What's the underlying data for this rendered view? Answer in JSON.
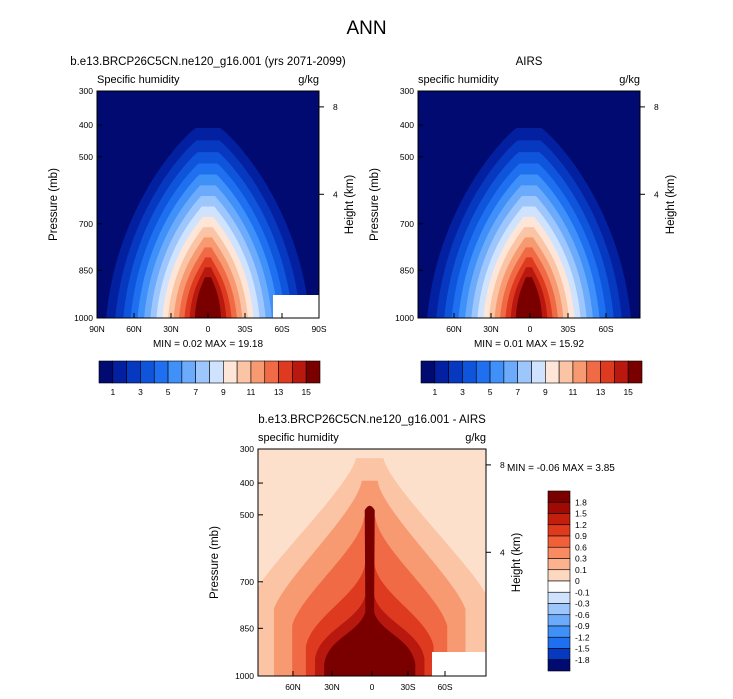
{
  "page_title": "ANN",
  "chart_data": [
    {
      "type": "contour",
      "title": "b.e13.BRCP26C5CN.ne120_g16.001 (yrs 2071-2099)",
      "left_label": "Specific humidity",
      "right_label": "g/kg",
      "xlabel": "",
      "ylabel": "Pressure (mb)",
      "ylabel_right": "Height (km)",
      "x_ticks": [
        "90N",
        "60N",
        "30N",
        "0",
        "30S",
        "60S",
        "90S"
      ],
      "y_ticks": [
        "300",
        "400",
        "500",
        "700",
        "850",
        "1000"
      ],
      "y_right_ticks": [
        "8",
        "4"
      ],
      "min_max": "MIN =  0.02  MAX = 19.18",
      "colorbar_labels": [
        "1",
        "3",
        "5",
        "7",
        "9",
        "11",
        "13",
        "15"
      ],
      "levels": [
        1,
        2,
        3,
        4,
        5,
        6,
        7,
        8,
        9,
        10,
        11,
        12,
        13,
        14,
        15
      ],
      "min": 0.02,
      "max": 19.18
    },
    {
      "type": "contour",
      "title": "AIRS",
      "left_label": "specific humidity",
      "right_label": "g/kg",
      "xlabel": "",
      "ylabel": "Pressure (mb)",
      "ylabel_right": "Height (km)",
      "x_ticks": [
        "60N",
        "30N",
        "0",
        "30S",
        "60S"
      ],
      "y_ticks": [
        "300",
        "400",
        "500",
        "700",
        "850",
        "1000"
      ],
      "y_right_ticks": [
        "8",
        "4"
      ],
      "min_max": "MIN =  0.01  MAX = 15.92",
      "colorbar_labels": [
        "1",
        "3",
        "5",
        "7",
        "9",
        "11",
        "13",
        "15"
      ],
      "levels": [
        1,
        2,
        3,
        4,
        5,
        6,
        7,
        8,
        9,
        10,
        11,
        12,
        13,
        14,
        15
      ],
      "min": 0.01,
      "max": 15.92
    },
    {
      "type": "contour",
      "title": "b.e13.BRCP26C5CN.ne120_g16.001 - AIRS",
      "left_label": "specific humidity",
      "right_label": "g/kg",
      "xlabel": "",
      "ylabel": "Pressure (mb)",
      "ylabel_right": "Height (km)",
      "x_ticks": [
        "60N",
        "30N",
        "0",
        "30S",
        "60S"
      ],
      "y_ticks": [
        "300",
        "400",
        "500",
        "700",
        "850",
        "1000"
      ],
      "y_right_ticks": [
        "8",
        "4"
      ],
      "min_max": "MIN = -0.06  MAX =   3.85",
      "colorbar_labels": [
        "1.8",
        "1.5",
        "1.2",
        "0.9",
        "0.6",
        "0.3",
        "0.1",
        "0",
        "-0.1",
        "-0.3",
        "-0.6",
        "-0.9",
        "-1.2",
        "-1.5",
        "-1.8"
      ],
      "levels": [
        1.8,
        1.5,
        1.2,
        0.9,
        0.6,
        0.3,
        0.1,
        0,
        -0.1,
        -0.3,
        -0.6,
        -0.9,
        -1.2,
        -1.5,
        -1.8
      ],
      "min": -0.06,
      "max": 3.85
    }
  ],
  "colors": {
    "humidity_scale": [
      "#000a70",
      "#0320a0",
      "#0738c0",
      "#0f55dc",
      "#1f70f0",
      "#4090fa",
      "#6cabfc",
      "#9dc6fd",
      "#cfe3fe",
      "#fde6d8",
      "#fbc4a4",
      "#f79a72",
      "#f06a45",
      "#dd3a20",
      "#b8180e",
      "#7a0000"
    ],
    "diff_scale": [
      "#7a0000",
      "#a00a05",
      "#c41e0c",
      "#e03a1c",
      "#f2603a",
      "#f98a62",
      "#fcb28e",
      "#fdd8c0",
      "#ffffff",
      "#cfe3fe",
      "#9dc6fd",
      "#6cabfc",
      "#4090fa",
      "#1f70f0",
      "#0738c0",
      "#000a70"
    ]
  }
}
